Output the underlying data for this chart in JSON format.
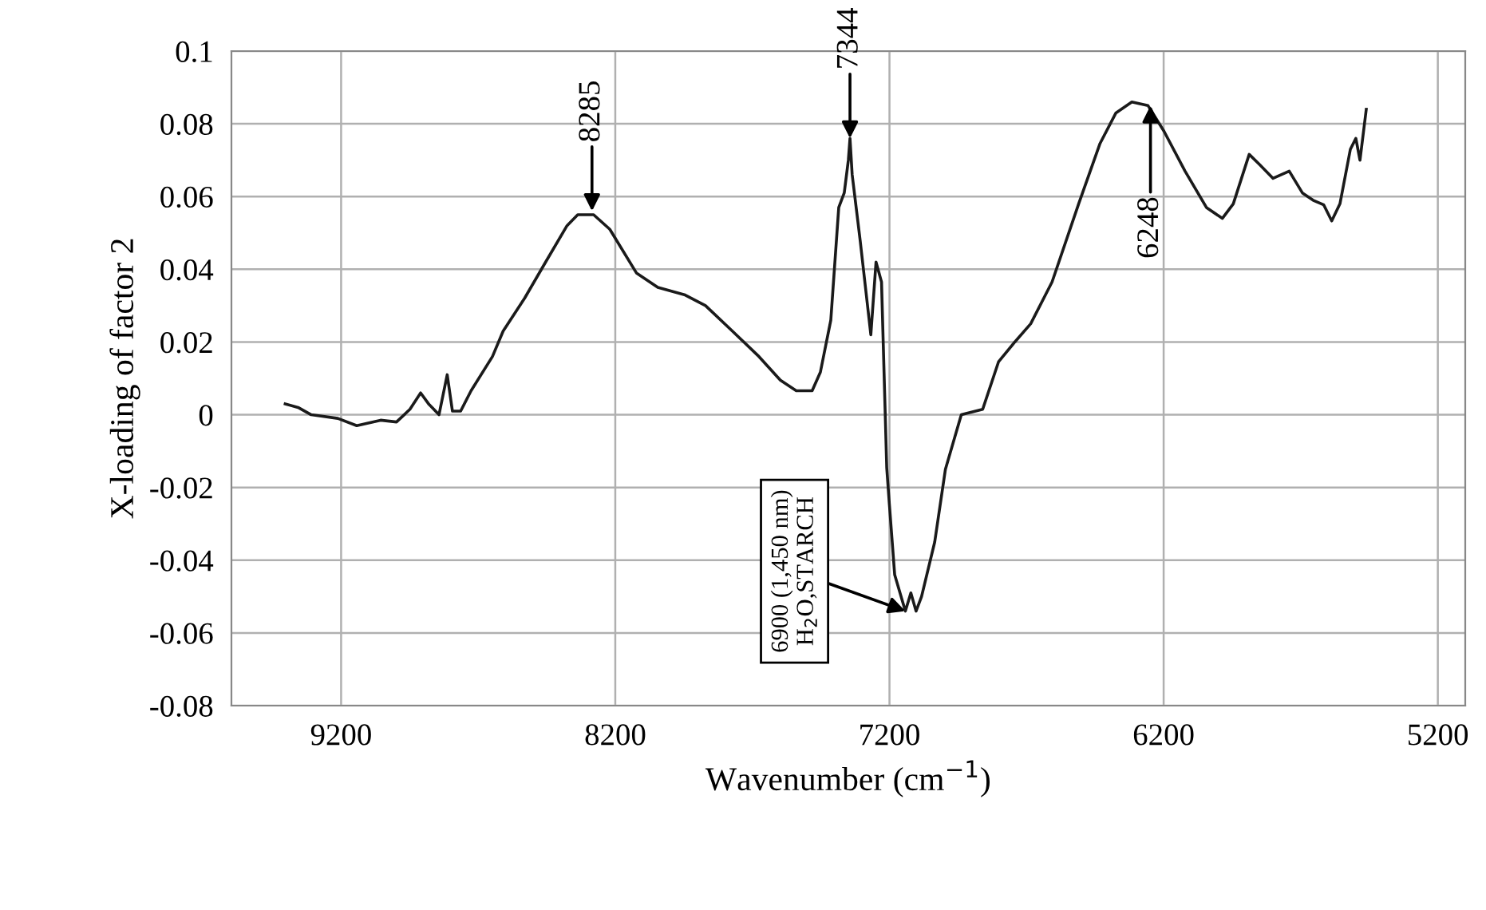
{
  "chart_data": {
    "type": "line",
    "xlabel": "Wavenumber (cm$^{−1}$)",
    "ylabel": "X-loading of factor 2",
    "xlim": [
      9600,
      5100
    ],
    "xticks": [
      9200,
      8200,
      7200,
      6200,
      5200
    ],
    "ylim": [
      -0.08,
      0.1
    ],
    "yticks": [
      -0.08,
      -0.06,
      -0.04,
      -0.02,
      0,
      0.02,
      0.04,
      0.06,
      0.08,
      0.1
    ],
    "grid": true,
    "marker": "none",
    "line_style": "solid",
    "series": [
      {
        "color": "#1a1a1a",
        "x": [
          9404,
          9357,
          9309,
          9212,
          9143,
          9056,
          8998,
          8949,
          8910,
          8881,
          8843,
          8813,
          8794,
          8764,
          8726,
          8648,
          8609,
          8531,
          8454,
          8376,
          8337,
          8279,
          8220,
          8123,
          8045,
          7948,
          7871,
          7773,
          7676,
          7598,
          7540,
          7482,
          7452,
          7414,
          7385,
          7365,
          7350,
          7344,
          7336,
          7307,
          7268,
          7249,
          7229,
          7210,
          7200,
          7181,
          7142,
          7122,
          7103,
          7083,
          7035,
          6996,
          6938,
          6860,
          6802,
          6743,
          6685,
          6607,
          6510,
          6432,
          6374,
          6316,
          6257,
          6199,
          6122,
          6044,
          5986,
          5946,
          5888,
          5849,
          5801,
          5742,
          5694,
          5655,
          5616,
          5587,
          5557,
          5519,
          5499,
          5484,
          5461
        ],
        "values": [
          0.003,
          0.002,
          0.0,
          -0.001,
          -0.003,
          -0.0015,
          -0.002,
          0.0015,
          0.006,
          0.003,
          0.0,
          0.011,
          0.001,
          0.001,
          0.0066,
          0.016,
          0.023,
          0.032,
          0.042,
          0.052,
          0.055,
          0.055,
          0.051,
          0.039,
          0.035,
          0.033,
          0.03,
          0.023,
          0.016,
          0.0095,
          0.0066,
          0.0066,
          0.0117,
          0.026,
          0.057,
          0.061,
          0.07,
          0.076,
          0.066,
          0.048,
          0.022,
          0.042,
          0.0365,
          -0.0146,
          -0.025,
          -0.044,
          -0.054,
          -0.049,
          -0.054,
          -0.05,
          -0.035,
          -0.015,
          0.0,
          0.0015,
          0.0146,
          0.02,
          0.025,
          0.0365,
          0.058,
          0.0746,
          0.083,
          0.086,
          0.085,
          0.078,
          0.067,
          0.057,
          0.054,
          0.058,
          0.0716,
          0.0687,
          0.065,
          0.067,
          0.061,
          0.059,
          0.0577,
          0.0533,
          0.058,
          0.073,
          0.076,
          0.07,
          0.084
        ]
      }
    ],
    "annotations": [
      {
        "text": "8285",
        "x": 8285,
        "y": 0.056
      },
      {
        "text": "7344",
        "x": 7344,
        "y": 0.076
      },
      {
        "text": "6248",
        "x": 6248,
        "y": 0.085
      },
      {
        "text": "6900 (1,450 nm)\nH$_{2}$O,STARCH",
        "x": 7142,
        "y": -0.054
      }
    ]
  }
}
